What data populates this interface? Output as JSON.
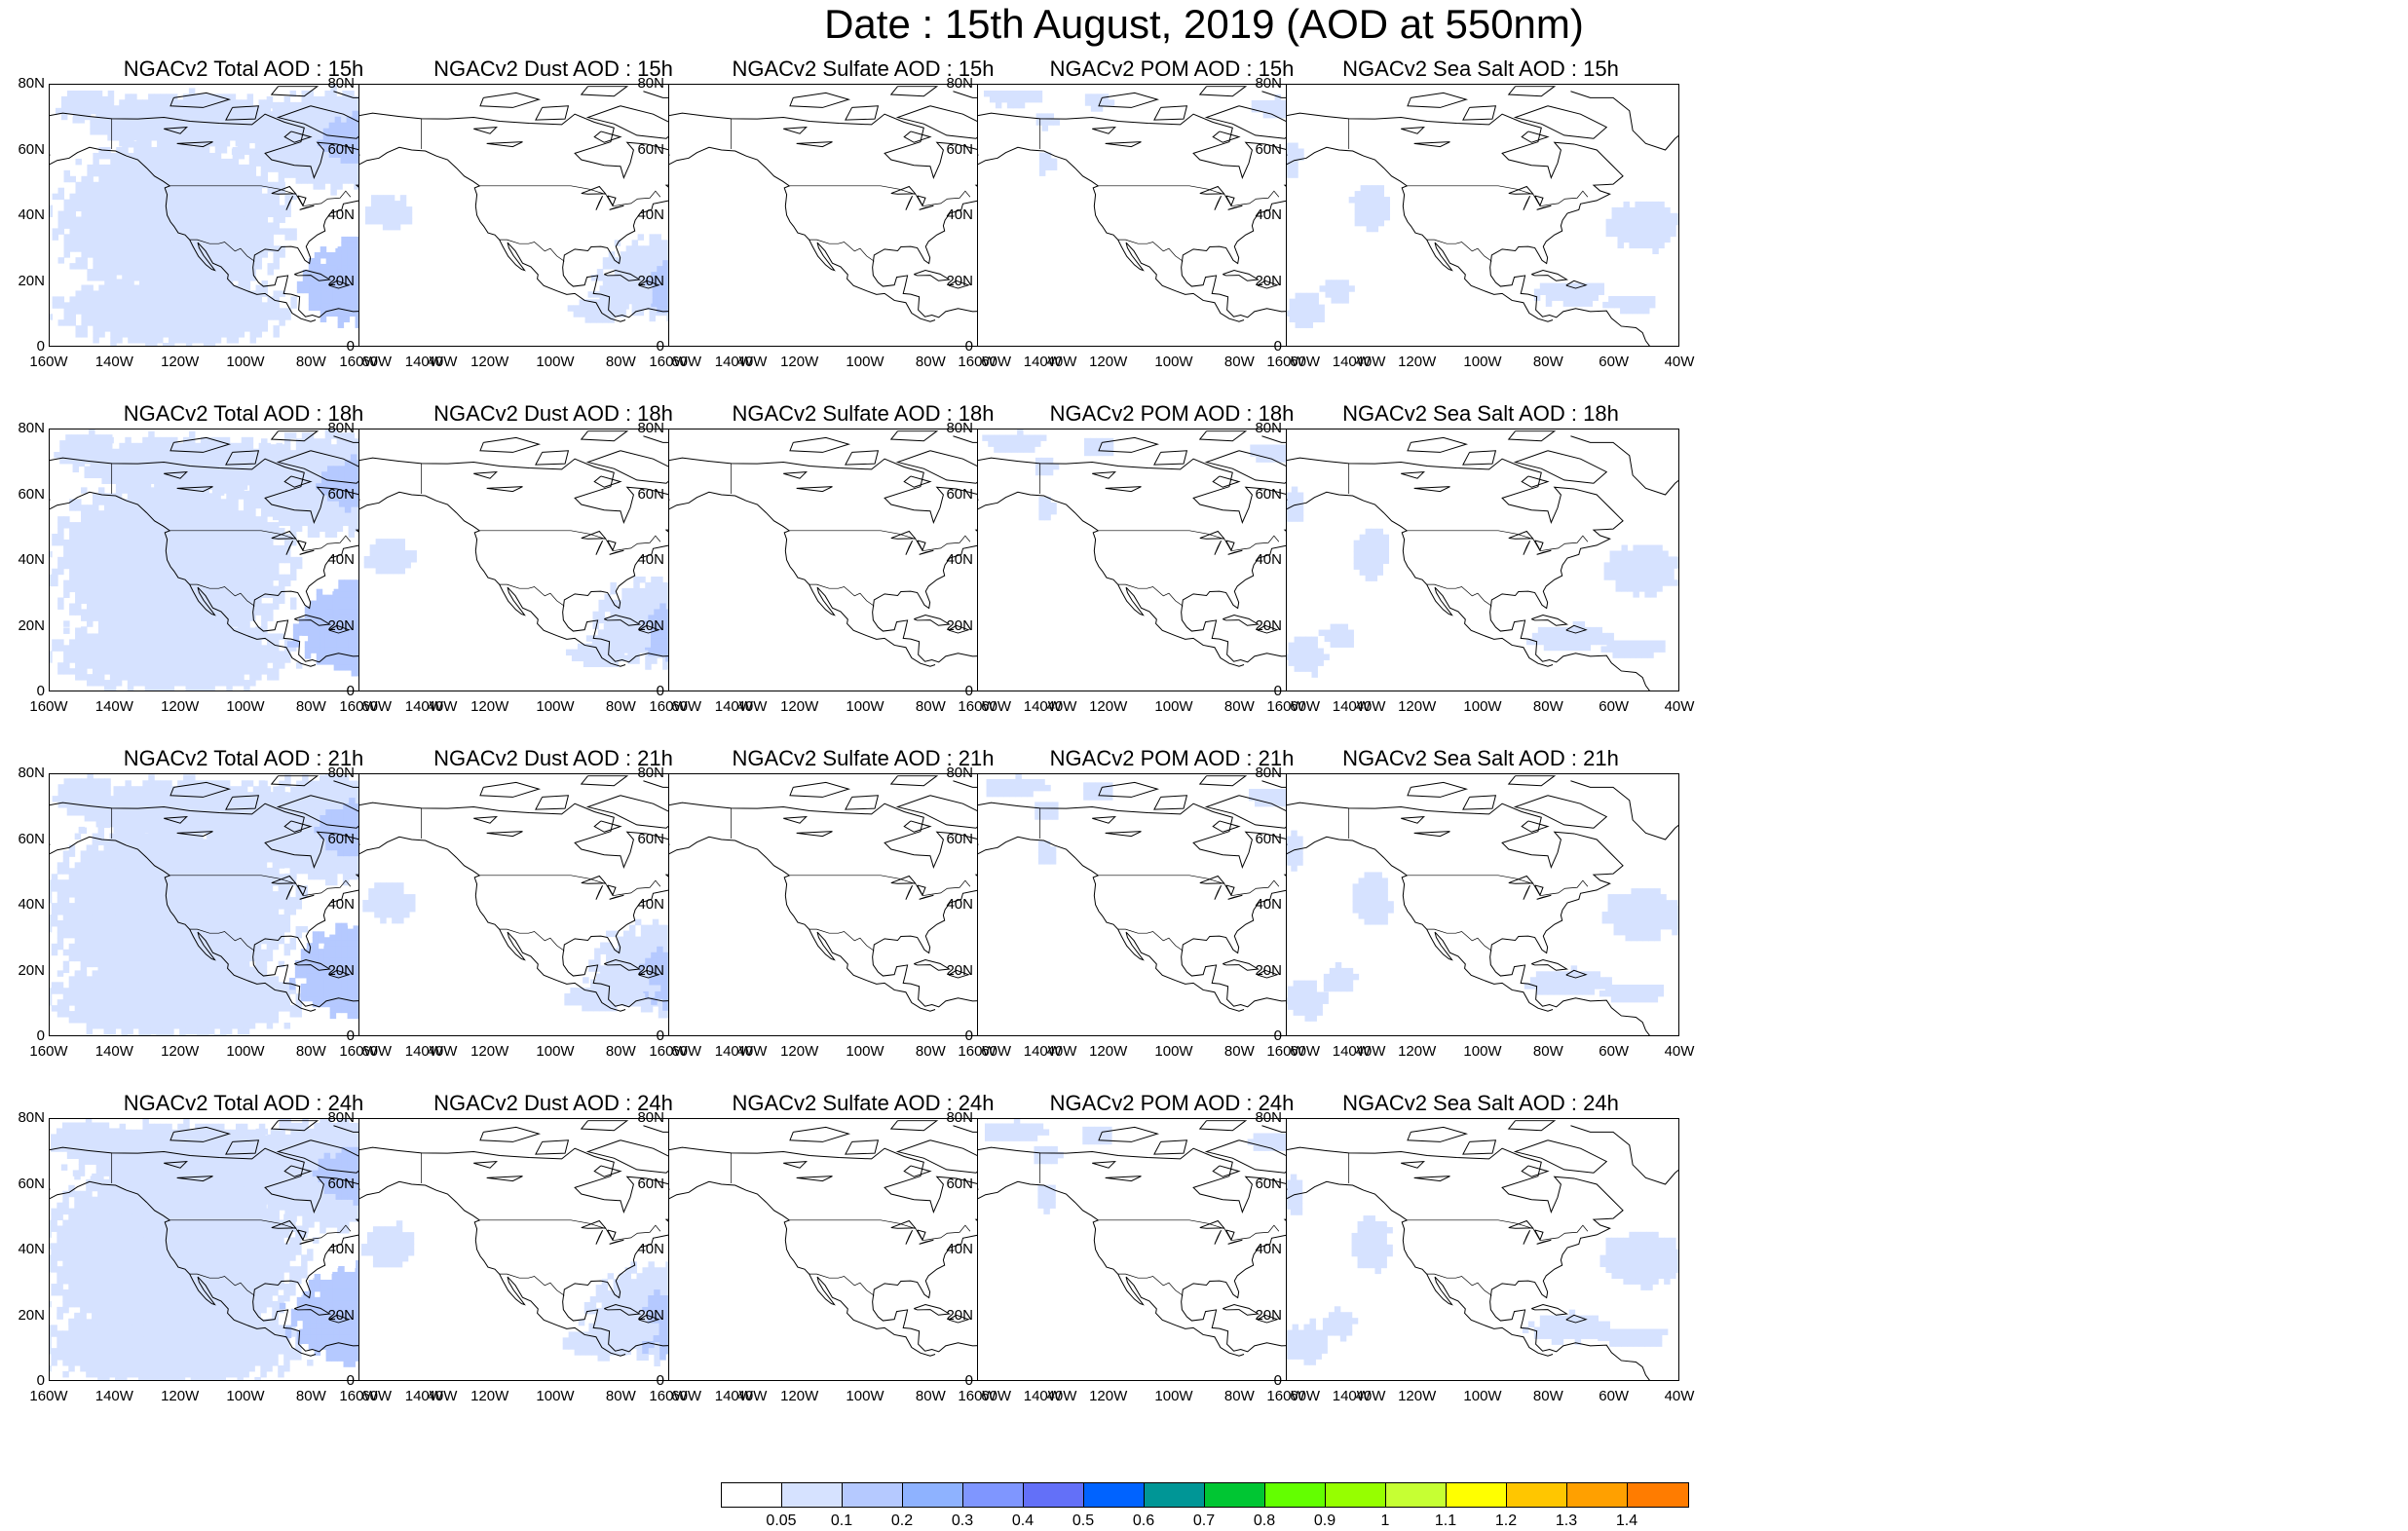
{
  "title": "Date : 15th August, 2019 (AOD at 550nm)",
  "rows": [
    {
      "hour": "15h",
      "panels": [
        "NGACv2 Total AOD : 15h",
        "NGACv2 Dust AOD : 15h",
        "NGACv2 Sulfate AOD : 15h",
        "NGACv2 POM AOD : 15h",
        "NGACv2 Sea Salt AOD : 15h"
      ]
    },
    {
      "hour": "18h",
      "panels": [
        "NGACv2 Total AOD : 18h",
        "NGACv2 Dust AOD : 18h",
        "NGACv2 Sulfate AOD : 18h",
        "NGACv2 POM AOD : 18h",
        "NGACv2 Sea Salt AOD : 18h"
      ]
    },
    {
      "hour": "21h",
      "panels": [
        "NGACv2 Total AOD : 21h",
        "NGACv2 Dust AOD : 21h",
        "NGACv2 Sulfate AOD : 21h",
        "NGACv2 POM AOD : 21h",
        "NGACv2 Sea Salt AOD : 21h"
      ]
    },
    {
      "hour": "24h",
      "panels": [
        "NGACv2 Total AOD : 24h",
        "NGACv2 Dust AOD : 24h",
        "NGACv2 Sulfate AOD : 24h",
        "NGACv2 POM AOD : 24h",
        "NGACv2 Sea Salt  AOD : 24h"
      ]
    }
  ],
  "species": [
    "total",
    "dust",
    "sulfate",
    "pom",
    "seasalt"
  ],
  "lat_ticks": [
    "80N",
    "60N",
    "40N",
    "20N",
    "0"
  ],
  "lon_ticks": [
    "160W",
    "140W",
    "120W",
    "100W",
    "80W",
    "60W",
    "40W"
  ],
  "colorbar": {
    "labels": [
      "0.05",
      "0.1",
      "0.2",
      "0.3",
      "0.4",
      "0.5",
      "0.6",
      "0.7",
      "0.8",
      "0.9",
      "1",
      "1.1",
      "1.2",
      "1.3",
      "1.4"
    ],
    "colors": [
      "#ffffff",
      "#d6e2ff",
      "#b5c9ff",
      "#8eb2ff",
      "#7f96ff",
      "#6370f8",
      "#0063ff",
      "#009696",
      "#00c633",
      "#63ff00",
      "#96ff00",
      "#c6ff33",
      "#ffff00",
      "#ffc600",
      "#ffa000",
      "#ff7c00",
      "#ff1900"
    ]
  }
}
